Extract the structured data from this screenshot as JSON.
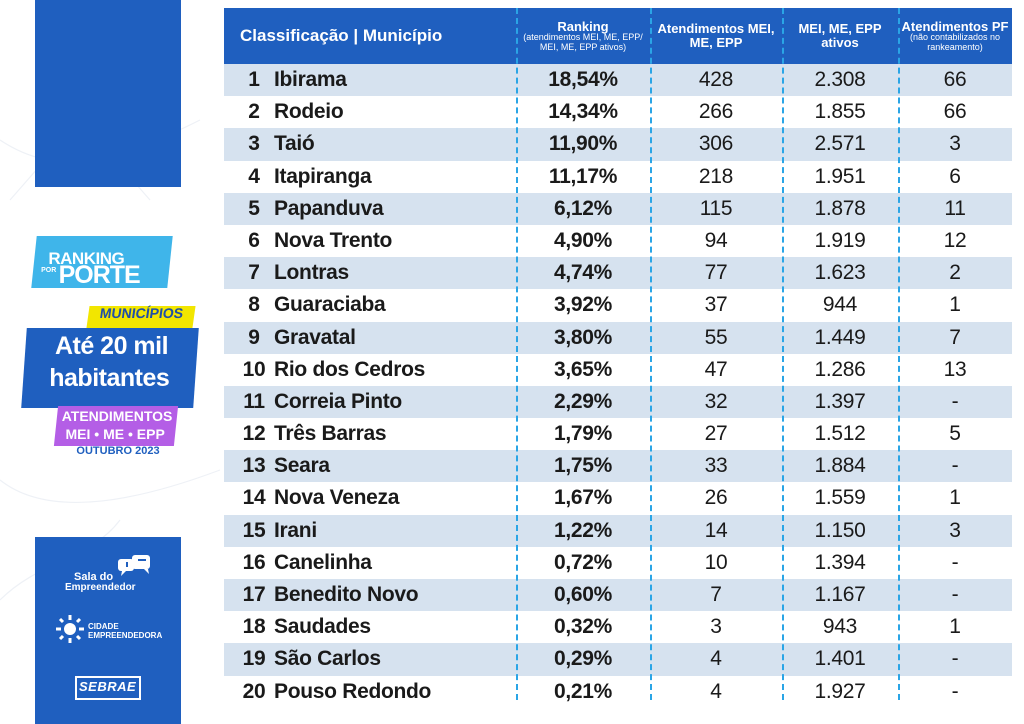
{
  "badge": {
    "ranking": "RANKING",
    "por": "POR",
    "porte": "PORTE",
    "municipios": "MUNICÍPIOS",
    "line1": "Até 20 mil",
    "line2": "habitantes",
    "atend1": "ATENDIMENTOS",
    "atend2": "MEI • ME • EPP",
    "month": "OUTUBRO 2023"
  },
  "logos": {
    "sala_line1": "Sala do",
    "sala_line2": "Empreendedor",
    "cidade_line1": "CIDADE",
    "cidade_line2": "EMPREENDEDORA",
    "sebrae": "SEBRAE"
  },
  "headers": {
    "classificacao": "Classificação | Município",
    "ranking": "Ranking",
    "ranking_sub": "(atendimentos MEI, ME, EPP/ MEI, ME, EPP ativos)",
    "atendimentos": "Atendimentos MEI, ME, EPP",
    "ativos": "MEI, ME, EPP ativos",
    "pf": "Atendimentos PF",
    "pf_sub": "(não contabilizados no rankeamento)"
  },
  "rows": [
    {
      "pos": "1",
      "name": "Ibirama",
      "ranking": "18,54%",
      "atend": "428",
      "ativos": "2.308",
      "pf": "66"
    },
    {
      "pos": "2",
      "name": "Rodeio",
      "ranking": "14,34%",
      "atend": "266",
      "ativos": "1.855",
      "pf": "66"
    },
    {
      "pos": "3",
      "name": "Taió",
      "ranking": "11,90%",
      "atend": "306",
      "ativos": "2.571",
      "pf": "3"
    },
    {
      "pos": "4",
      "name": "Itapiranga",
      "ranking": "11,17%",
      "atend": "218",
      "ativos": "1.951",
      "pf": "6"
    },
    {
      "pos": "5",
      "name": "Papanduva",
      "ranking": "6,12%",
      "atend": "115",
      "ativos": "1.878",
      "pf": "11"
    },
    {
      "pos": "6",
      "name": "Nova Trento",
      "ranking": "4,90%",
      "atend": "94",
      "ativos": "1.919",
      "pf": "12"
    },
    {
      "pos": "7",
      "name": "Lontras",
      "ranking": "4,74%",
      "atend": "77",
      "ativos": "1.623",
      "pf": "2"
    },
    {
      "pos": "8",
      "name": "Guaraciaba",
      "ranking": "3,92%",
      "atend": "37",
      "ativos": "944",
      "pf": "1"
    },
    {
      "pos": "9",
      "name": "Gravatal",
      "ranking": "3,80%",
      "atend": "55",
      "ativos": "1.449",
      "pf": "7"
    },
    {
      "pos": "10",
      "name": "Rio dos Cedros",
      "ranking": "3,65%",
      "atend": "47",
      "ativos": "1.286",
      "pf": "13"
    },
    {
      "pos": "11",
      "name": "Correia Pinto",
      "ranking": "2,29%",
      "atend": "32",
      "ativos": "1.397",
      "pf": "-"
    },
    {
      "pos": "12",
      "name": "Três Barras",
      "ranking": "1,79%",
      "atend": "27",
      "ativos": "1.512",
      "pf": "5"
    },
    {
      "pos": "13",
      "name": "Seara",
      "ranking": "1,75%",
      "atend": "33",
      "ativos": "1.884",
      "pf": "-"
    },
    {
      "pos": "14",
      "name": "Nova Veneza",
      "ranking": "1,67%",
      "atend": "26",
      "ativos": "1.559",
      "pf": "1"
    },
    {
      "pos": "15",
      "name": "Irani",
      "ranking": "1,22%",
      "atend": "14",
      "ativos": "1.150",
      "pf": "3"
    },
    {
      "pos": "16",
      "name": "Canelinha",
      "ranking": "0,72%",
      "atend": "10",
      "ativos": "1.394",
      "pf": "-"
    },
    {
      "pos": "17",
      "name": "Benedito Novo",
      "ranking": "0,60%",
      "atend": "7",
      "ativos": "1.167",
      "pf": "-"
    },
    {
      "pos": "18",
      "name": "Saudades",
      "ranking": "0,32%",
      "atend": "3",
      "ativos": "943",
      "pf": "1"
    },
    {
      "pos": "19",
      "name": "São Carlos",
      "ranking": "0,29%",
      "atend": "4",
      "ativos": "1.401",
      "pf": "-"
    },
    {
      "pos": "20",
      "name": "Pouso Redondo",
      "ranking": "0,21%",
      "atend": "4",
      "ativos": "1.927",
      "pf": "-"
    }
  ],
  "colors": {
    "brand_blue": "#1f5fbf",
    "light_blue": "#3fb5ea",
    "yellow": "#f2e600",
    "purple": "#b45ee6",
    "row_alt": "#d6e2ef",
    "dashed": "#2aa5e6"
  }
}
